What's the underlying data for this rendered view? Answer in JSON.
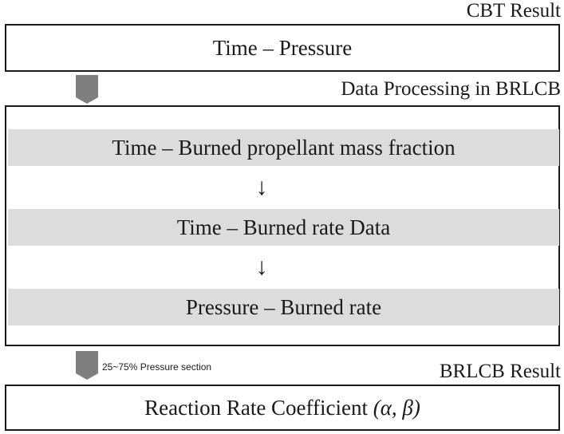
{
  "labels": {
    "cbt_result": "CBT Result",
    "data_processing": "Data Processing in BRLCB",
    "brlcb_result": "BRLCB Result"
  },
  "boxes": {
    "time_pressure": "Time – Pressure",
    "reaction_rate_prefix": "Reaction Rate Coefficient ",
    "reaction_rate_params": "(α, β)"
  },
  "steps": [
    "Time – Burned propellant mass fraction",
    "Time – Burned rate Data",
    "Pressure – Burned rate"
  ],
  "arrows": {
    "down_glyph": "↓"
  },
  "notes": {
    "pressure_section": "25~75% Pressure section"
  },
  "colors": {
    "band": "#dcdcdc",
    "block_arrow": "#7f7f7f",
    "stroke": "#1a1a1a"
  }
}
